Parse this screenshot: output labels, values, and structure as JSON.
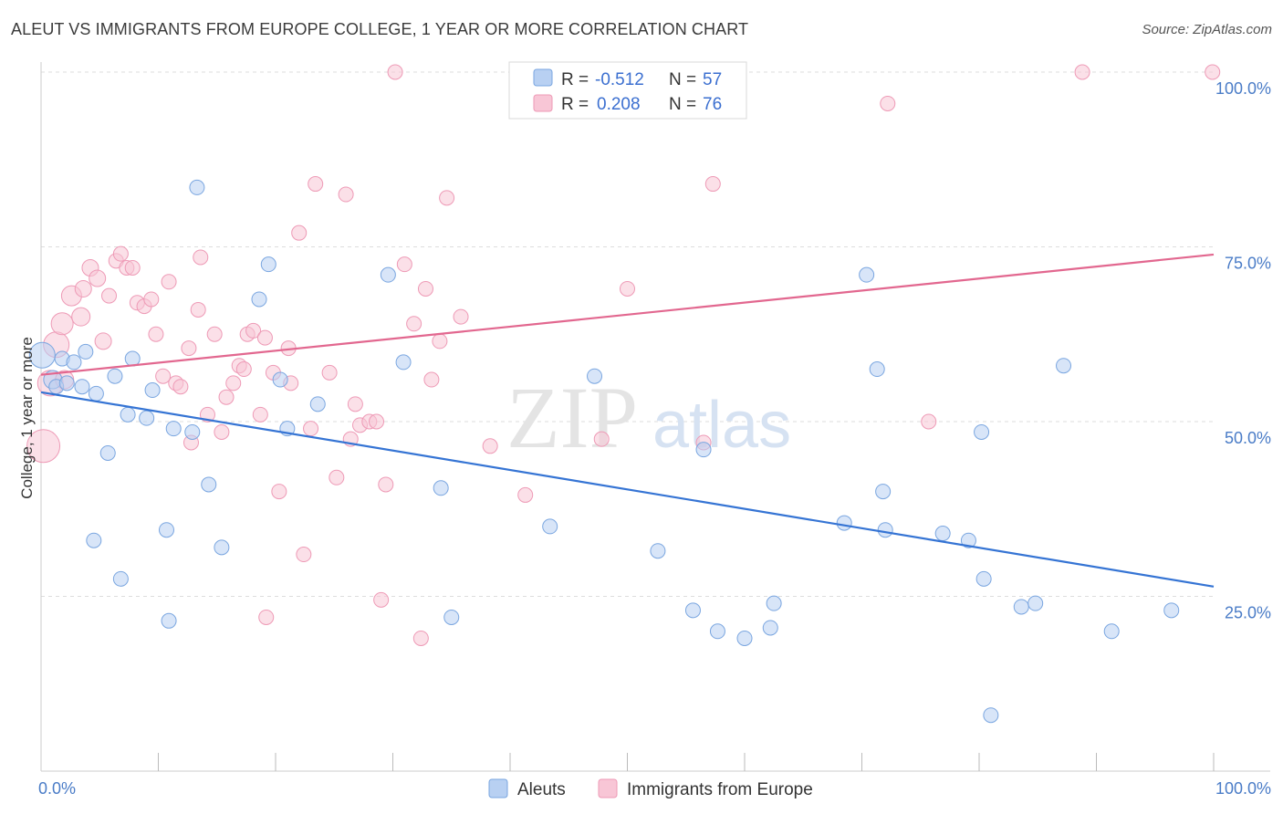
{
  "title": "ALEUT VS IMMIGRANTS FROM EUROPE COLLEGE, 1 YEAR OR MORE CORRELATION CHART",
  "source": "Source: ZipAtlas.com",
  "watermark": {
    "zip": "ZIP",
    "atlas": "atlas"
  },
  "colors": {
    "aleut_fill": "#b8d0f2",
    "aleut_stroke": "#7aa6e0",
    "aleut_line": "#3574d4",
    "europe_fill": "#f8c6d6",
    "europe_stroke": "#ee9ab6",
    "europe_line": "#e2678f",
    "tick": "#4a7cc7",
    "grid": "#dddddd"
  },
  "legend": {
    "aleut": {
      "r_label": "R =",
      "r_value": "-0.512",
      "n_label": "N =",
      "n_value": "57"
    },
    "europe": {
      "r_label": "R =",
      "r_value": "0.208",
      "n_label": "N =",
      "n_value": "76"
    }
  },
  "chart_data": {
    "type": "scatter",
    "title": "ALEUT VS IMMIGRANTS FROM EUROPE COLLEGE, 1 YEAR OR MORE CORRELATION CHART",
    "xlabel": "",
    "ylabel": "College, 1 year or more",
    "xlim": [
      0,
      100
    ],
    "ylim": [
      0,
      100
    ],
    "x_tick_labels": [
      "0.0%",
      "100.0%"
    ],
    "y_ticks": [
      25,
      50,
      75,
      100
    ],
    "y_tick_labels": [
      "25.0%",
      "50.0%",
      "75.0%",
      "100.0%"
    ],
    "grid": true,
    "legend_placement": "top-center",
    "series": [
      {
        "name": "Aleuts",
        "r": -0.512,
        "n": 57,
        "trend": {
          "x": [
            0,
            100
          ],
          "y": [
            54.2,
            26.4
          ]
        },
        "points": [
          {
            "x": 0.1,
            "y": 59.5,
            "s": 14
          },
          {
            "x": 1.0,
            "y": 56.0,
            "s": 10
          },
          {
            "x": 1.3,
            "y": 55.0,
            "s": 8
          },
          {
            "x": 1.8,
            "y": 59.0,
            "s": 8
          },
          {
            "x": 2.2,
            "y": 55.5,
            "s": 8
          },
          {
            "x": 2.8,
            "y": 58.5,
            "s": 8
          },
          {
            "x": 3.5,
            "y": 55.0,
            "s": 8
          },
          {
            "x": 3.8,
            "y": 60.0,
            "s": 8
          },
          {
            "x": 4.5,
            "y": 33.0,
            "s": 8
          },
          {
            "x": 4.7,
            "y": 54.0,
            "s": 8
          },
          {
            "x": 5.7,
            "y": 45.5,
            "s": 8
          },
          {
            "x": 6.3,
            "y": 56.5,
            "s": 8
          },
          {
            "x": 6.8,
            "y": 27.5,
            "s": 8
          },
          {
            "x": 7.4,
            "y": 51.0,
            "s": 8
          },
          {
            "x": 7.8,
            "y": 59.0,
            "s": 8
          },
          {
            "x": 9.0,
            "y": 50.5,
            "s": 8
          },
          {
            "x": 9.5,
            "y": 54.5,
            "s": 8
          },
          {
            "x": 10.7,
            "y": 34.5,
            "s": 8
          },
          {
            "x": 10.9,
            "y": 21.5,
            "s": 8
          },
          {
            "x": 11.3,
            "y": 49.0,
            "s": 8
          },
          {
            "x": 12.9,
            "y": 48.5,
            "s": 8
          },
          {
            "x": 13.3,
            "y": 83.5,
            "s": 8
          },
          {
            "x": 14.3,
            "y": 41.0,
            "s": 8
          },
          {
            "x": 15.4,
            "y": 32.0,
            "s": 8
          },
          {
            "x": 18.6,
            "y": 67.5,
            "s": 8
          },
          {
            "x": 19.4,
            "y": 72.5,
            "s": 8
          },
          {
            "x": 20.4,
            "y": 56.0,
            "s": 8
          },
          {
            "x": 21.0,
            "y": 49.0,
            "s": 8
          },
          {
            "x": 23.6,
            "y": 52.5,
            "s": 8
          },
          {
            "x": 29.6,
            "y": 71.0,
            "s": 8
          },
          {
            "x": 30.9,
            "y": 58.5,
            "s": 8
          },
          {
            "x": 34.1,
            "y": 40.5,
            "s": 8
          },
          {
            "x": 35.0,
            "y": 22.0,
            "s": 8
          },
          {
            "x": 43.4,
            "y": 35.0,
            "s": 8
          },
          {
            "x": 47.2,
            "y": 56.5,
            "s": 8
          },
          {
            "x": 52.6,
            "y": 31.5,
            "s": 8
          },
          {
            "x": 55.6,
            "y": 23.0,
            "s": 8
          },
          {
            "x": 56.5,
            "y": 46.0,
            "s": 8
          },
          {
            "x": 57.7,
            "y": 20.0,
            "s": 8
          },
          {
            "x": 60.0,
            "y": 19.0,
            "s": 8
          },
          {
            "x": 62.2,
            "y": 20.5,
            "s": 8
          },
          {
            "x": 62.5,
            "y": 24.0,
            "s": 8
          },
          {
            "x": 68.5,
            "y": 35.5,
            "s": 8
          },
          {
            "x": 70.4,
            "y": 71.0,
            "s": 8
          },
          {
            "x": 71.3,
            "y": 57.5,
            "s": 8
          },
          {
            "x": 71.8,
            "y": 40.0,
            "s": 8
          },
          {
            "x": 72.0,
            "y": 34.5,
            "s": 8
          },
          {
            "x": 76.9,
            "y": 34.0,
            "s": 8
          },
          {
            "x": 79.1,
            "y": 33.0,
            "s": 8
          },
          {
            "x": 80.2,
            "y": 48.5,
            "s": 8
          },
          {
            "x": 80.4,
            "y": 27.5,
            "s": 8
          },
          {
            "x": 81.0,
            "y": 8.0,
            "s": 8
          },
          {
            "x": 83.6,
            "y": 23.5,
            "s": 8
          },
          {
            "x": 84.8,
            "y": 24.0,
            "s": 8
          },
          {
            "x": 87.2,
            "y": 58.0,
            "s": 8
          },
          {
            "x": 91.3,
            "y": 20.0,
            "s": 8
          },
          {
            "x": 96.4,
            "y": 23.0,
            "s": 8
          }
        ]
      },
      {
        "name": "Immigrants from Europe",
        "r": 0.208,
        "n": 76,
        "trend": {
          "x": [
            0,
            100
          ],
          "y": [
            56.7,
            73.9
          ]
        },
        "points": [
          {
            "x": 0.2,
            "y": 46.5,
            "s": 18
          },
          {
            "x": 0.8,
            "y": 55.5,
            "s": 14
          },
          {
            "x": 1.3,
            "y": 61.0,
            "s": 14
          },
          {
            "x": 1.8,
            "y": 64.0,
            "s": 12
          },
          {
            "x": 2.0,
            "y": 56.0,
            "s": 10
          },
          {
            "x": 2.6,
            "y": 68.0,
            "s": 11
          },
          {
            "x": 3.4,
            "y": 65.0,
            "s": 10
          },
          {
            "x": 3.6,
            "y": 69.0,
            "s": 9
          },
          {
            "x": 4.2,
            "y": 72.0,
            "s": 9
          },
          {
            "x": 4.8,
            "y": 70.5,
            "s": 9
          },
          {
            "x": 5.3,
            "y": 61.5,
            "s": 9
          },
          {
            "x": 5.8,
            "y": 68.0,
            "s": 8
          },
          {
            "x": 6.4,
            "y": 73.0,
            "s": 8
          },
          {
            "x": 6.8,
            "y": 74.0,
            "s": 8
          },
          {
            "x": 7.3,
            "y": 72.0,
            "s": 8
          },
          {
            "x": 7.8,
            "y": 72.0,
            "s": 8
          },
          {
            "x": 8.2,
            "y": 67.0,
            "s": 8
          },
          {
            "x": 8.8,
            "y": 66.5,
            "s": 8
          },
          {
            "x": 9.4,
            "y": 67.5,
            "s": 8
          },
          {
            "x": 9.8,
            "y": 62.5,
            "s": 8
          },
          {
            "x": 10.4,
            "y": 56.5,
            "s": 8
          },
          {
            "x": 10.9,
            "y": 70.0,
            "s": 8
          },
          {
            "x": 11.5,
            "y": 55.5,
            "s": 8
          },
          {
            "x": 11.9,
            "y": 55.0,
            "s": 8
          },
          {
            "x": 12.6,
            "y": 60.5,
            "s": 8
          },
          {
            "x": 12.8,
            "y": 47.0,
            "s": 8
          },
          {
            "x": 13.4,
            "y": 66.0,
            "s": 8
          },
          {
            "x": 13.6,
            "y": 73.5,
            "s": 8
          },
          {
            "x": 14.2,
            "y": 51.0,
            "s": 8
          },
          {
            "x": 14.8,
            "y": 62.5,
            "s": 8
          },
          {
            "x": 15.4,
            "y": 48.5,
            "s": 8
          },
          {
            "x": 15.8,
            "y": 53.5,
            "s": 8
          },
          {
            "x": 16.4,
            "y": 55.5,
            "s": 8
          },
          {
            "x": 16.9,
            "y": 58.0,
            "s": 8
          },
          {
            "x": 17.3,
            "y": 57.5,
            "s": 8
          },
          {
            "x": 17.6,
            "y": 62.5,
            "s": 8
          },
          {
            "x": 18.1,
            "y": 63.0,
            "s": 8
          },
          {
            "x": 18.7,
            "y": 51.0,
            "s": 8
          },
          {
            "x": 19.1,
            "y": 62.0,
            "s": 8
          },
          {
            "x": 19.2,
            "y": 22.0,
            "s": 8
          },
          {
            "x": 19.8,
            "y": 57.0,
            "s": 8
          },
          {
            "x": 20.3,
            "y": 40.0,
            "s": 8
          },
          {
            "x": 21.1,
            "y": 60.5,
            "s": 8
          },
          {
            "x": 21.3,
            "y": 55.5,
            "s": 8
          },
          {
            "x": 22.0,
            "y": 77.0,
            "s": 8
          },
          {
            "x": 22.4,
            "y": 31.0,
            "s": 8
          },
          {
            "x": 23.0,
            "y": 49.0,
            "s": 8
          },
          {
            "x": 23.4,
            "y": 84.0,
            "s": 8
          },
          {
            "x": 24.6,
            "y": 57.0,
            "s": 8
          },
          {
            "x": 25.2,
            "y": 42.0,
            "s": 8
          },
          {
            "x": 26.0,
            "y": 82.5,
            "s": 8
          },
          {
            "x": 26.4,
            "y": 47.5,
            "s": 8
          },
          {
            "x": 26.8,
            "y": 52.5,
            "s": 8
          },
          {
            "x": 27.2,
            "y": 49.5,
            "s": 8
          },
          {
            "x": 28.0,
            "y": 50.0,
            "s": 8
          },
          {
            "x": 28.6,
            "y": 50.0,
            "s": 8
          },
          {
            "x": 29.0,
            "y": 24.5,
            "s": 8
          },
          {
            "x": 29.4,
            "y": 41.0,
            "s": 8
          },
          {
            "x": 30.2,
            "y": 100.0,
            "s": 8
          },
          {
            "x": 31.0,
            "y": 72.5,
            "s": 8
          },
          {
            "x": 31.8,
            "y": 64.0,
            "s": 8
          },
          {
            "x": 32.4,
            "y": 19.0,
            "s": 8
          },
          {
            "x": 32.8,
            "y": 69.0,
            "s": 8
          },
          {
            "x": 33.3,
            "y": 56.0,
            "s": 8
          },
          {
            "x": 34.0,
            "y": 61.5,
            "s": 8
          },
          {
            "x": 34.6,
            "y": 82.0,
            "s": 8
          },
          {
            "x": 35.8,
            "y": 65.0,
            "s": 8
          },
          {
            "x": 38.3,
            "y": 46.5,
            "s": 8
          },
          {
            "x": 41.3,
            "y": 39.5,
            "s": 8
          },
          {
            "x": 47.8,
            "y": 47.5,
            "s": 8
          },
          {
            "x": 50.0,
            "y": 69.0,
            "s": 8
          },
          {
            "x": 56.5,
            "y": 47.0,
            "s": 8
          },
          {
            "x": 57.3,
            "y": 84.0,
            "s": 8
          },
          {
            "x": 72.2,
            "y": 95.5,
            "s": 8
          },
          {
            "x": 75.7,
            "y": 50.0,
            "s": 8
          },
          {
            "x": 88.8,
            "y": 100.0,
            "s": 8
          },
          {
            "x": 99.9,
            "y": 100.0,
            "s": 8
          }
        ]
      }
    ]
  }
}
